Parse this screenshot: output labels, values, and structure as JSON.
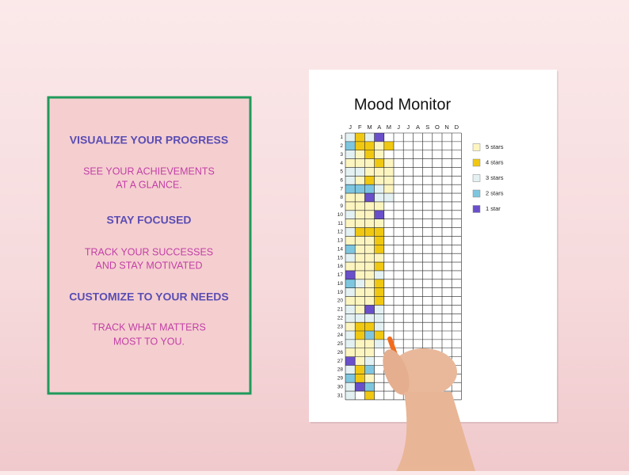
{
  "panel": {
    "sections": [
      {
        "heading": "VISUALIZE YOUR PROGRESS",
        "lines": [
          "SEE YOUR ACHIEVEMENTS",
          "AT A GLANCE."
        ]
      },
      {
        "heading": "STAY FOCUSED",
        "lines": [
          "TRACK YOUR SUCCESSES",
          "AND STAY MOTIVATED"
        ]
      },
      {
        "heading": "CUSTOMIZE TO YOUR NEEDS",
        "lines": [
          "TRACK WHAT MATTERS",
          "MOST TO YOU."
        ]
      }
    ]
  },
  "sheet": {
    "title": "Mood Monitor",
    "months": [
      "J",
      "F",
      "M",
      "A",
      "M",
      "J",
      "J",
      "A",
      "S",
      "O",
      "N",
      "D"
    ],
    "days": [
      1,
      2,
      3,
      4,
      5,
      6,
      7,
      8,
      9,
      10,
      11,
      12,
      13,
      14,
      15,
      16,
      17,
      18,
      19,
      20,
      21,
      22,
      23,
      24,
      25,
      26,
      27,
      28,
      29,
      30,
      31
    ],
    "legend": [
      {
        "label": "5 stars",
        "color": "#fdf5c0"
      },
      {
        "label": "4 stars",
        "color": "#f1c811"
      },
      {
        "label": "3 stars",
        "color": "#e4f1f2"
      },
      {
        "label": "2 stars",
        "color": "#7ec6e0"
      },
      {
        "label": "1 star",
        "color": "#6a4fcb"
      }
    ],
    "ratings": [
      [
        3,
        2,
        3,
        5,
        3,
        3,
        2,
        5,
        5,
        3,
        5,
        3,
        5,
        2,
        3,
        5,
        1,
        2,
        3,
        5,
        3,
        3,
        5,
        3,
        3,
        5,
        1,
        3,
        2,
        3,
        3
      ],
      [
        4,
        4,
        5,
        5,
        3,
        5,
        2,
        5,
        5,
        5,
        5,
        4,
        5,
        5,
        5,
        5,
        5,
        3,
        5,
        5,
        5,
        3,
        4,
        4,
        5,
        5,
        5,
        4,
        4,
        1,
        null
      ],
      [
        3,
        4,
        4,
        5,
        5,
        4,
        2,
        1,
        5,
        5,
        5,
        4,
        5,
        5,
        5,
        5,
        5,
        5,
        5,
        5,
        1,
        3,
        4,
        2,
        5,
        5,
        3,
        2,
        5,
        2,
        4
      ],
      [
        1,
        5,
        5,
        4,
        5,
        5,
        3,
        3,
        5,
        1,
        5,
        4,
        4,
        4,
        5,
        4,
        3,
        4,
        4,
        4,
        3,
        3,
        3,
        4,
        3,
        null,
        null,
        null,
        null,
        null,
        null
      ],
      [
        null,
        4,
        null,
        5,
        5,
        5,
        5,
        3,
        null,
        null,
        null,
        null,
        null,
        null,
        null,
        null,
        null,
        null,
        null,
        null,
        null,
        null,
        null,
        null,
        null,
        null,
        null,
        null,
        null,
        null,
        null
      ]
    ]
  }
}
